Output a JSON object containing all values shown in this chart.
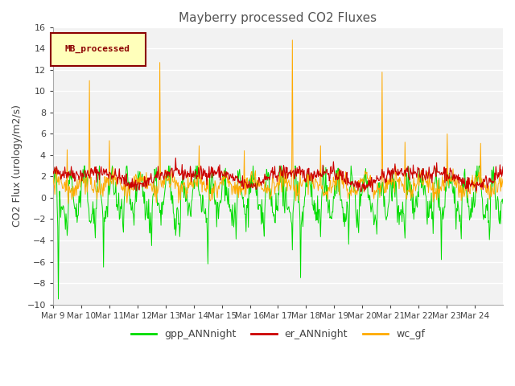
{
  "title": "Mayberry processed CO2 Fluxes",
  "ylabel": "CO2 Flux (urology/m2/s)",
  "ylim": [
    -10,
    16
  ],
  "yticks": [
    -10,
    -8,
    -6,
    -4,
    -2,
    0,
    2,
    4,
    6,
    8,
    10,
    12,
    14,
    16
  ],
  "x_labels": [
    "Mar 9",
    "Mar 10",
    "Mar 11",
    "Mar 12",
    "Mar 13",
    "Mar 14",
    "Mar 15",
    "Mar 16",
    "Mar 17",
    "Mar 18",
    "Mar 19",
    "Mar 20",
    "Mar 21",
    "Mar 22",
    "Mar 23",
    "Mar 24"
  ],
  "legend_label": "MB_processed",
  "line_labels": [
    "gpp_ANNnight",
    "er_ANNnight",
    "wc_gf"
  ],
  "line_colors": [
    "#00dd00",
    "#cc0000",
    "#ffaa00"
  ],
  "bg_color": "#ffffff",
  "plot_bg": "#f2f2f2",
  "title_color": "#555555",
  "seed": 42,
  "n_days": 16,
  "pts_per_day": 48
}
